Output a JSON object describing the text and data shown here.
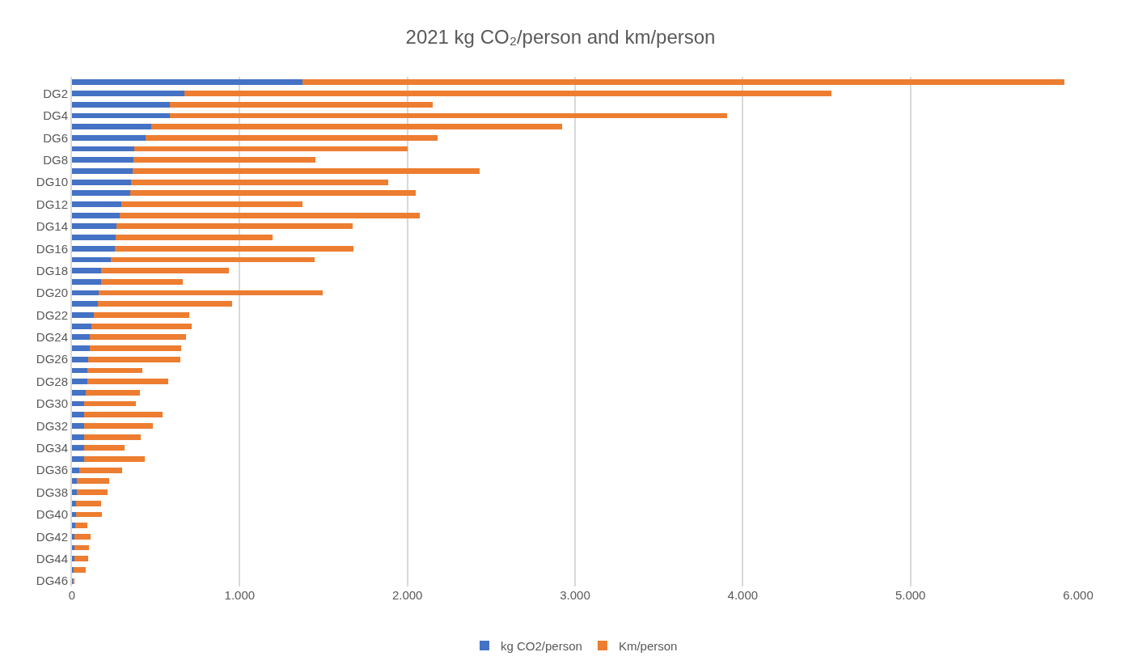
{
  "chart_data": {
    "type": "bar",
    "orientation": "horizontal",
    "stacked": true,
    "title": "2021 kg CO₂/person and km/person",
    "categories": [
      null,
      "DG2",
      null,
      "DG4",
      null,
      "DG6",
      null,
      "DG8",
      null,
      "DG10",
      null,
      "DG12",
      null,
      "DG14",
      null,
      "DG16",
      null,
      "DG18",
      null,
      "DG20",
      null,
      "DG22",
      null,
      "DG24",
      null,
      "DG26",
      null,
      "DG28",
      null,
      "DG30",
      null,
      "DG32",
      null,
      "DG34",
      null,
      "DG36",
      null,
      "DG38",
      null,
      "DG40",
      null,
      "DG42",
      null,
      "DG44",
      null,
      "DG46"
    ],
    "series": [
      {
        "name": "kg CO2/person",
        "color": "#4472c4",
        "values": [
          1375,
          670,
          585,
          585,
          475,
          440,
          370,
          365,
          360,
          350,
          345,
          295,
          285,
          265,
          260,
          255,
          230,
          175,
          175,
          160,
          155,
          130,
          115,
          105,
          105,
          95,
          90,
          90,
          80,
          70,
          70,
          70,
          70,
          70,
          70,
          45,
          30,
          30,
          25,
          25,
          20,
          15,
          15,
          15,
          10,
          3
        ]
      },
      {
        "name": "Km/person",
        "color": "#ed7d31",
        "values": [
          4545,
          3860,
          1565,
          3320,
          2450,
          1740,
          1630,
          1085,
          2070,
          1535,
          1705,
          1080,
          1790,
          1410,
          935,
          1425,
          1215,
          760,
          485,
          1335,
          800,
          570,
          600,
          575,
          545,
          550,
          330,
          485,
          325,
          310,
          470,
          410,
          340,
          245,
          365,
          255,
          190,
          180,
          150,
          155,
          70,
          95,
          85,
          80,
          70,
          10
        ]
      }
    ],
    "xlim": [
      0,
      6000
    ],
    "xticks": [
      0,
      {
        "value": 1000,
        "label": "1.000"
      },
      {
        "value": 2000,
        "label": "2.000"
      },
      {
        "value": 3000,
        "label": "3.000"
      },
      {
        "value": 4000,
        "label": "4.000"
      },
      {
        "value": 5000,
        "label": "5.000"
      },
      {
        "value": 6000,
        "label": "6.000"
      }
    ],
    "grid": "x",
    "legend": "bottom"
  }
}
